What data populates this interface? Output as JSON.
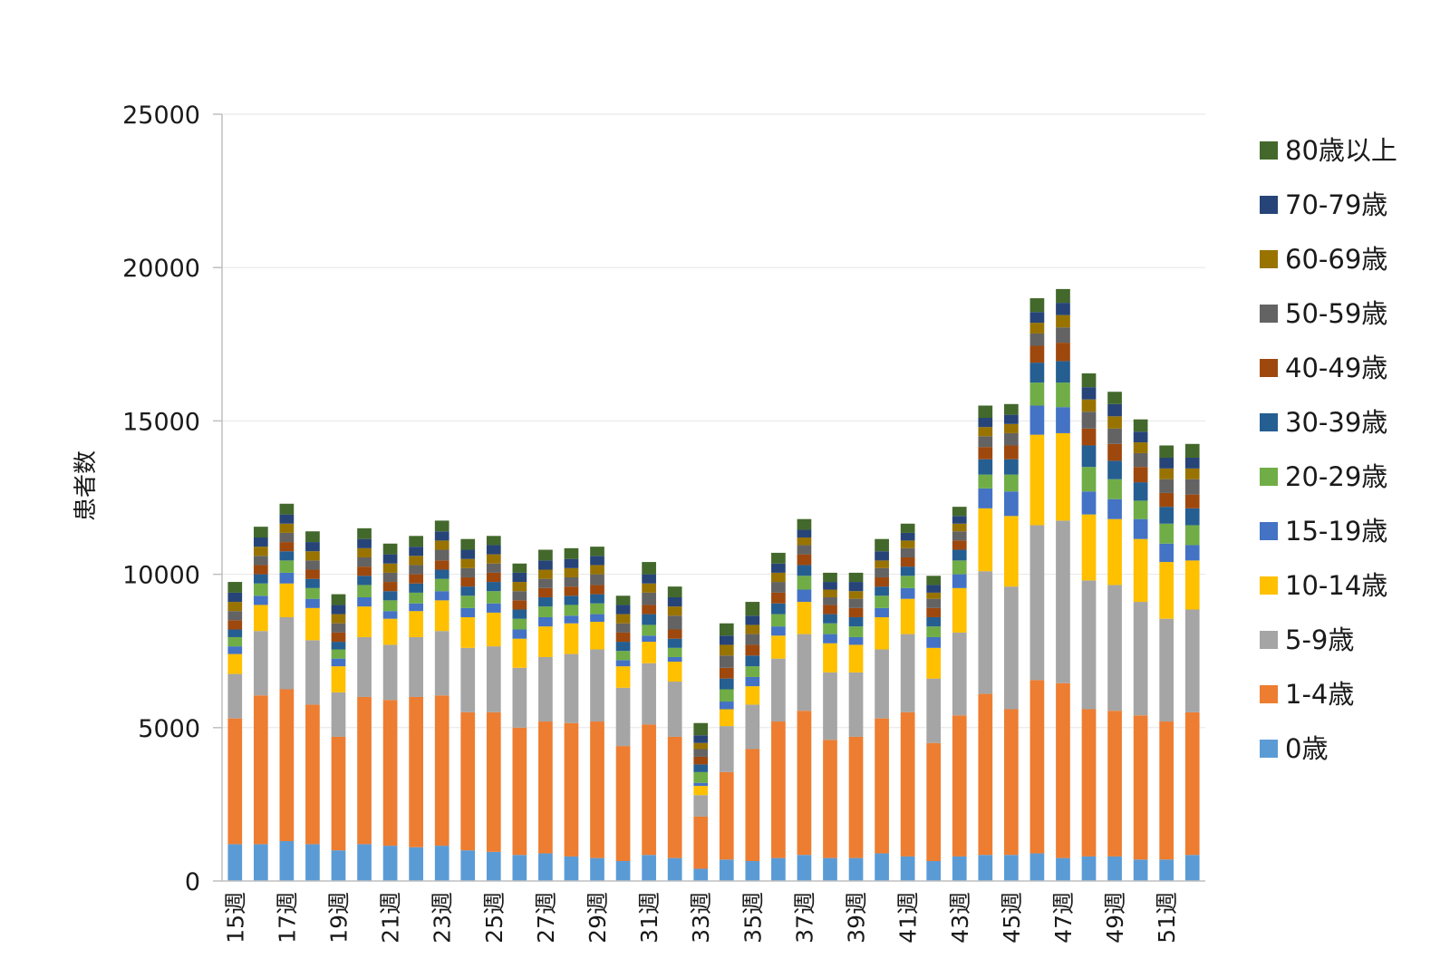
{
  "chart_data": {
    "type": "bar",
    "stacked": true,
    "title": "",
    "xlabel": "",
    "ylabel": "患者数",
    "ylim": [
      0,
      25000
    ],
    "yticks": [
      0,
      5000,
      10000,
      15000,
      20000,
      25000
    ],
    "grid": true,
    "legend_position": "right",
    "categories": [
      "15週",
      "16週",
      "17週",
      "18週",
      "19週",
      "20週",
      "21週",
      "22週",
      "23週",
      "24週",
      "25週",
      "26週",
      "27週",
      "28週",
      "29週",
      "30週",
      "31週",
      "32週",
      "33週",
      "34週",
      "35週",
      "36週",
      "37週",
      "38週",
      "39週",
      "40週",
      "41週",
      "42週",
      "43週",
      "44週",
      "45週",
      "46週",
      "47週",
      "48週",
      "49週",
      "50週",
      "51週",
      "52週"
    ],
    "tick_labels": [
      "15週",
      "17週",
      "19週",
      "21週",
      "23週",
      "25週",
      "27週",
      "29週",
      "31週",
      "33週",
      "35週",
      "37週",
      "39週",
      "41週",
      "43週",
      "45週",
      "47週",
      "49週",
      "51週"
    ],
    "series": [
      {
        "name": "0歳",
        "color": "#5b9bd5",
        "values": [
          1200,
          1200,
          1300,
          1200,
          1000,
          1200,
          1150,
          1100,
          1150,
          1000,
          950,
          850,
          900,
          800,
          750,
          650,
          850,
          750,
          400,
          700,
          650,
          750,
          850,
          750,
          750,
          900,
          800,
          650,
          800,
          850,
          850,
          900,
          750,
          800,
          800,
          700,
          700,
          850
        ]
      },
      {
        "name": "1-4歳",
        "color": "#ed7d31",
        "values": [
          4100,
          4850,
          4950,
          4550,
          3700,
          4800,
          4750,
          4900,
          4900,
          4500,
          4550,
          4150,
          4300,
          4350,
          4450,
          3750,
          4250,
          3950,
          1700,
          2850,
          3650,
          4450,
          4700,
          3850,
          3950,
          4400,
          4700,
          3850,
          4600,
          5250,
          4750,
          5650,
          5700,
          4800,
          4750,
          4700,
          4500,
          4650
        ]
      },
      {
        "name": "5-9歳",
        "color": "#a5a5a5",
        "values": [
          1450,
          2100,
          2350,
          2100,
          1450,
          1950,
          1800,
          1950,
          2100,
          2100,
          2150,
          1950,
          2100,
          2250,
          2350,
          1900,
          2000,
          1800,
          700,
          1500,
          1450,
          2050,
          2500,
          2200,
          2100,
          2250,
          2550,
          2100,
          2700,
          4000,
          4000,
          5050,
          5300,
          4200,
          4100,
          3700,
          3350,
          3350
        ]
      },
      {
        "name": "10-14歳",
        "color": "#ffc000",
        "values": [
          650,
          850,
          1100,
          1050,
          850,
          1000,
          850,
          850,
          1000,
          1000,
          1100,
          950,
          1000,
          1000,
          900,
          700,
          700,
          650,
          300,
          550,
          600,
          750,
          1050,
          950,
          900,
          1050,
          1150,
          1000,
          1450,
          2050,
          2300,
          2950,
          2850,
          2150,
          2150,
          2050,
          1850,
          1600
        ]
      },
      {
        "name": "15-19歳",
        "color": "#4472c4",
        "values": [
          250,
          300,
          350,
          300,
          250,
          300,
          250,
          250,
          300,
          300,
          300,
          300,
          300,
          250,
          250,
          200,
          200,
          150,
          100,
          250,
          300,
          300,
          400,
          300,
          250,
          300,
          350,
          350,
          450,
          650,
          800,
          950,
          850,
          750,
          650,
          650,
          600,
          500
        ]
      },
      {
        "name": "20-29歳",
        "color": "#70ad47",
        "values": [
          300,
          400,
          400,
          350,
          300,
          400,
          350,
          350,
          400,
          400,
          400,
          350,
          350,
          350,
          350,
          300,
          350,
          300,
          350,
          400,
          350,
          400,
          450,
          350,
          350,
          400,
          400,
          350,
          450,
          450,
          550,
          750,
          800,
          800,
          650,
          600,
          650,
          650
        ]
      },
      {
        "name": "30-39歳",
        "color": "#255e91",
        "values": [
          250,
          300,
          300,
          300,
          250,
          300,
          300,
          300,
          300,
          300,
          300,
          300,
          300,
          300,
          300,
          300,
          350,
          300,
          250,
          350,
          350,
          350,
          350,
          300,
          300,
          300,
          300,
          300,
          350,
          500,
          500,
          650,
          700,
          700,
          600,
          600,
          550,
          550
        ]
      },
      {
        "name": "40-49歳",
        "color": "#9e480e",
        "values": [
          300,
          300,
          300,
          300,
          300,
          300,
          300,
          300,
          300,
          300,
          300,
          300,
          300,
          300,
          300,
          300,
          300,
          300,
          250,
          350,
          350,
          350,
          350,
          300,
          300,
          300,
          300,
          300,
          300,
          400,
          450,
          550,
          600,
          550,
          550,
          500,
          450,
          450
        ]
      },
      {
        "name": "50-59歳",
        "color": "#636363",
        "values": [
          300,
          300,
          300,
          300,
          300,
          300,
          300,
          300,
          350,
          300,
          300,
          300,
          300,
          300,
          350,
          300,
          400,
          450,
          250,
          400,
          350,
          350,
          300,
          250,
          300,
          300,
          300,
          300,
          300,
          350,
          400,
          400,
          500,
          550,
          500,
          450,
          450,
          500
        ]
      },
      {
        "name": "60-69歳",
        "color": "#997300",
        "values": [
          300,
          300,
          300,
          300,
          300,
          300,
          300,
          300,
          300,
          300,
          300,
          300,
          300,
          300,
          300,
          300,
          300,
          300,
          200,
          350,
          300,
          300,
          250,
          250,
          250,
          250,
          250,
          200,
          250,
          300,
          300,
          350,
          400,
          400,
          400,
          350,
          350,
          350
        ]
      },
      {
        "name": "70-79歳",
        "color": "#264478",
        "values": [
          300,
          300,
          300,
          300,
          300,
          300,
          300,
          300,
          300,
          300,
          300,
          300,
          300,
          300,
          300,
          300,
          300,
          300,
          250,
          300,
          300,
          300,
          250,
          250,
          300,
          300,
          250,
          250,
          250,
          300,
          300,
          350,
          400,
          400,
          400,
          350,
          350,
          350
        ]
      },
      {
        "name": "80歳以上",
        "color": "#43682b",
        "values": [
          350,
          350,
          350,
          350,
          350,
          350,
          350,
          350,
          350,
          350,
          300,
          300,
          350,
          350,
          300,
          300,
          400,
          350,
          400,
          400,
          450,
          350,
          350,
          300,
          300,
          400,
          300,
          300,
          300,
          400,
          350,
          450,
          450,
          450,
          400,
          400,
          400,
          450
        ]
      }
    ]
  }
}
